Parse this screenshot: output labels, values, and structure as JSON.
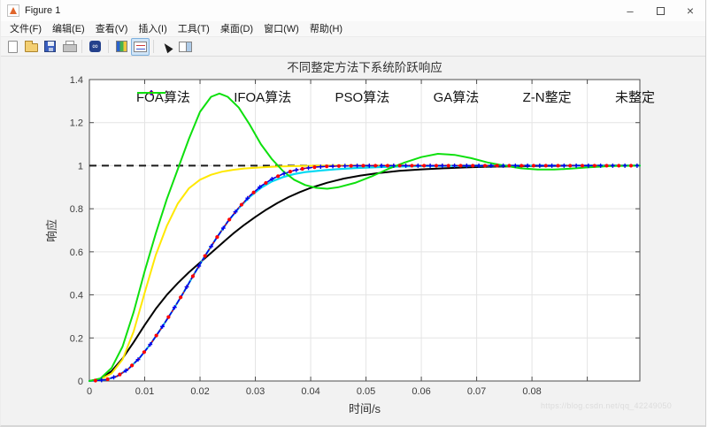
{
  "window": {
    "title": "Figure 1",
    "controls": {
      "minimize": "–",
      "close": "×"
    }
  },
  "menu_bar": {
    "items": [
      "文件(F)",
      "编辑(E)",
      "查看(V)",
      "插入(I)",
      "工具(T)",
      "桌面(D)",
      "窗口(W)",
      "帮助(H)"
    ]
  },
  "toolbar": {
    "groups": [
      [
        "new-file",
        "open-folder",
        "save",
        "print"
      ],
      [
        "link-plot"
      ],
      [
        "colorbar",
        "legend"
      ],
      [
        "pointer",
        "property-inspector"
      ]
    ],
    "active": "legend"
  },
  "watermark": "https://blog.csdn.net/qq_42249050",
  "chart_data": {
    "type": "line",
    "title": "不同整定方法下系统阶跃响应",
    "xlabel": "时间/s",
    "ylabel": "响应",
    "xlim": [
      0,
      0.0995
    ],
    "ylim": [
      0,
      1.4
    ],
    "grid": true,
    "legend_position": "top-horizontal-inside",
    "colors": {
      "grid": "#e4e4e4",
      "axis": "#4d4d4d",
      "text": "#3c3c3c"
    },
    "xticks": [
      {
        "v": 0,
        "label": "0"
      },
      {
        "v": 0.01,
        "label": "0.01"
      },
      {
        "v": 0.02,
        "label": "0.02"
      },
      {
        "v": 0.03,
        "label": "0.03"
      },
      {
        "v": 0.04,
        "label": "0.04"
      },
      {
        "v": 0.05,
        "label": "0.05"
      },
      {
        "v": 0.06,
        "label": "0.06"
      },
      {
        "v": 0.07,
        "label": "0.07"
      },
      {
        "v": 0.08,
        "label": "0.08"
      },
      {
        "v": 0.09,
        "label": ""
      }
    ],
    "yticks": [
      {
        "v": 0,
        "label": "0"
      },
      {
        "v": 0.2,
        "label": "0.2"
      },
      {
        "v": 0.4,
        "label": "0.4"
      },
      {
        "v": 0.6,
        "label": "0.6"
      },
      {
        "v": 0.8,
        "label": "0.8"
      },
      {
        "v": 1,
        "label": "1"
      },
      {
        "v": 1.2,
        "label": "1.2"
      },
      {
        "v": 1.4,
        "label": "1.4"
      }
    ],
    "reference_line": {
      "y": 1,
      "style": "dashed",
      "color": "#1a1a1a",
      "width": 2
    },
    "series": [
      {
        "name": "FOA算法",
        "color": "#000000",
        "style": "solid",
        "marker": "none",
        "width": 2,
        "points": [
          [
            0,
            0
          ],
          [
            0.002,
            0.01
          ],
          [
            0.004,
            0.045
          ],
          [
            0.006,
            0.105
          ],
          [
            0.008,
            0.18
          ],
          [
            0.01,
            0.26
          ],
          [
            0.012,
            0.335
          ],
          [
            0.014,
            0.4
          ],
          [
            0.016,
            0.455
          ],
          [
            0.018,
            0.505
          ],
          [
            0.02,
            0.55
          ],
          [
            0.022,
            0.595
          ],
          [
            0.024,
            0.64
          ],
          [
            0.026,
            0.685
          ],
          [
            0.028,
            0.725
          ],
          [
            0.03,
            0.762
          ],
          [
            0.032,
            0.796
          ],
          [
            0.034,
            0.827
          ],
          [
            0.036,
            0.854
          ],
          [
            0.038,
            0.877
          ],
          [
            0.04,
            0.897
          ],
          [
            0.043,
            0.921
          ],
          [
            0.046,
            0.94
          ],
          [
            0.049,
            0.954
          ],
          [
            0.052,
            0.965
          ],
          [
            0.056,
            0.976
          ],
          [
            0.06,
            0.983
          ],
          [
            0.064,
            0.988
          ],
          [
            0.068,
            0.992
          ],
          [
            0.072,
            0.995
          ],
          [
            0.076,
            0.997
          ],
          [
            0.08,
            0.998
          ],
          [
            0.085,
            0.999
          ],
          [
            0.09,
            1
          ],
          [
            0.0995,
            1
          ]
        ]
      },
      {
        "name": "IFOA算法",
        "color": "#ff0000",
        "style": "dashdot",
        "marker": "dot",
        "width": 1.5,
        "marker_interval": 0.0022,
        "marker_start": 0.0011,
        "points": [
          [
            0,
            0
          ],
          [
            0.003,
            0.006
          ],
          [
            0.005,
            0.022
          ],
          [
            0.007,
            0.055
          ],
          [
            0.009,
            0.105
          ],
          [
            0.011,
            0.17
          ],
          [
            0.013,
            0.245
          ],
          [
            0.015,
            0.325
          ],
          [
            0.017,
            0.41
          ],
          [
            0.019,
            0.5
          ],
          [
            0.021,
            0.585
          ],
          [
            0.023,
            0.665
          ],
          [
            0.025,
            0.74
          ],
          [
            0.027,
            0.805
          ],
          [
            0.029,
            0.86
          ],
          [
            0.031,
            0.905
          ],
          [
            0.033,
            0.938
          ],
          [
            0.035,
            0.962
          ],
          [
            0.037,
            0.978
          ],
          [
            0.039,
            0.988
          ],
          [
            0.041,
            0.994
          ],
          [
            0.043,
            0.997
          ],
          [
            0.046,
            0.999
          ],
          [
            0.05,
            1
          ],
          [
            0.06,
            1
          ],
          [
            0.07,
            1
          ],
          [
            0.08,
            1
          ],
          [
            0.09,
            1
          ],
          [
            0.0995,
            1
          ]
        ]
      },
      {
        "name": "PSO算法",
        "color": "#0000ee",
        "style": "dashed",
        "marker": "plus",
        "width": 1.5,
        "marker_interval": 0.0022,
        "marker_start": 0.0022,
        "points": [
          [
            0,
            0
          ],
          [
            0.003,
            0.006
          ],
          [
            0.005,
            0.022
          ],
          [
            0.007,
            0.055
          ],
          [
            0.009,
            0.105
          ],
          [
            0.011,
            0.17
          ],
          [
            0.013,
            0.245
          ],
          [
            0.015,
            0.325
          ],
          [
            0.017,
            0.41
          ],
          [
            0.019,
            0.5
          ],
          [
            0.021,
            0.585
          ],
          [
            0.023,
            0.665
          ],
          [
            0.025,
            0.74
          ],
          [
            0.027,
            0.805
          ],
          [
            0.029,
            0.86
          ],
          [
            0.031,
            0.905
          ],
          [
            0.033,
            0.938
          ],
          [
            0.035,
            0.962
          ],
          [
            0.037,
            0.978
          ],
          [
            0.039,
            0.988
          ],
          [
            0.041,
            0.994
          ],
          [
            0.043,
            0.997
          ],
          [
            0.046,
            0.999
          ],
          [
            0.05,
            1
          ],
          [
            0.06,
            1
          ],
          [
            0.07,
            1
          ],
          [
            0.08,
            1
          ],
          [
            0.09,
            1
          ],
          [
            0.0995,
            1
          ]
        ]
      },
      {
        "name": "GA算法",
        "color": "#00d9f2",
        "style": "solid",
        "marker": "none",
        "width": 2.2,
        "points": [
          [
            0,
            0
          ],
          [
            0.003,
            0.006
          ],
          [
            0.005,
            0.022
          ],
          [
            0.007,
            0.055
          ],
          [
            0.009,
            0.105
          ],
          [
            0.011,
            0.17
          ],
          [
            0.013,
            0.245
          ],
          [
            0.015,
            0.325
          ],
          [
            0.017,
            0.41
          ],
          [
            0.019,
            0.5
          ],
          [
            0.021,
            0.585
          ],
          [
            0.023,
            0.665
          ],
          [
            0.025,
            0.74
          ],
          [
            0.027,
            0.803
          ],
          [
            0.029,
            0.855
          ],
          [
            0.031,
            0.897
          ],
          [
            0.033,
            0.927
          ],
          [
            0.035,
            0.947
          ],
          [
            0.037,
            0.961
          ],
          [
            0.039,
            0.97
          ],
          [
            0.042,
            0.978
          ],
          [
            0.045,
            0.984
          ],
          [
            0.048,
            0.989
          ],
          [
            0.052,
            0.993
          ],
          [
            0.056,
            0.996
          ],
          [
            0.06,
            0.998
          ],
          [
            0.065,
            0.999
          ],
          [
            0.07,
            1
          ],
          [
            0.08,
            1
          ],
          [
            0.09,
            1
          ],
          [
            0.0995,
            1
          ]
        ]
      },
      {
        "name": "Z-N整定",
        "color": "#ffe800",
        "style": "solid",
        "marker": "none",
        "width": 2,
        "points": [
          [
            0,
            0
          ],
          [
            0.002,
            0.008
          ],
          [
            0.004,
            0.035
          ],
          [
            0.006,
            0.1
          ],
          [
            0.008,
            0.23
          ],
          [
            0.01,
            0.41
          ],
          [
            0.012,
            0.585
          ],
          [
            0.014,
            0.72
          ],
          [
            0.016,
            0.825
          ],
          [
            0.018,
            0.895
          ],
          [
            0.02,
            0.935
          ],
          [
            0.022,
            0.958
          ],
          [
            0.024,
            0.972
          ],
          [
            0.026,
            0.981
          ],
          [
            0.028,
            0.987
          ],
          [
            0.031,
            0.992
          ],
          [
            0.034,
            0.996
          ],
          [
            0.038,
            0.999
          ],
          [
            0.042,
            1
          ],
          [
            0.05,
            1
          ],
          [
            0.06,
            1
          ],
          [
            0.07,
            1
          ],
          [
            0.08,
            1
          ],
          [
            0.09,
            1
          ],
          [
            0.0995,
            1
          ]
        ]
      },
      {
        "name": "未整定",
        "color": "#0ee00e",
        "style": "solid",
        "marker": "none",
        "width": 2,
        "points": [
          [
            0,
            0
          ],
          [
            0.002,
            0.012
          ],
          [
            0.004,
            0.06
          ],
          [
            0.006,
            0.16
          ],
          [
            0.008,
            0.32
          ],
          [
            0.01,
            0.51
          ],
          [
            0.012,
            0.685
          ],
          [
            0.014,
            0.845
          ],
          [
            0.016,
            0.985
          ],
          [
            0.018,
            1.125
          ],
          [
            0.02,
            1.25
          ],
          [
            0.022,
            1.32
          ],
          [
            0.0235,
            1.335
          ],
          [
            0.025,
            1.32
          ],
          [
            0.027,
            1.27
          ],
          [
            0.029,
            1.19
          ],
          [
            0.031,
            1.1
          ],
          [
            0.033,
            1.03
          ],
          [
            0.035,
            0.975
          ],
          [
            0.037,
            0.935
          ],
          [
            0.039,
            0.91
          ],
          [
            0.041,
            0.897
          ],
          [
            0.043,
            0.893
          ],
          [
            0.045,
            0.9
          ],
          [
            0.048,
            0.92
          ],
          [
            0.051,
            0.95
          ],
          [
            0.054,
            0.985
          ],
          [
            0.057,
            1.015
          ],
          [
            0.06,
            1.04
          ],
          [
            0.063,
            1.055
          ],
          [
            0.066,
            1.05
          ],
          [
            0.069,
            1.035
          ],
          [
            0.072,
            1.015
          ],
          [
            0.075,
            1
          ],
          [
            0.078,
            0.988
          ],
          [
            0.081,
            0.982
          ],
          [
            0.084,
            0.982
          ],
          [
            0.087,
            0.986
          ],
          [
            0.09,
            0.992
          ],
          [
            0.094,
            0.998
          ],
          [
            0.0995,
            1
          ]
        ]
      }
    ]
  }
}
